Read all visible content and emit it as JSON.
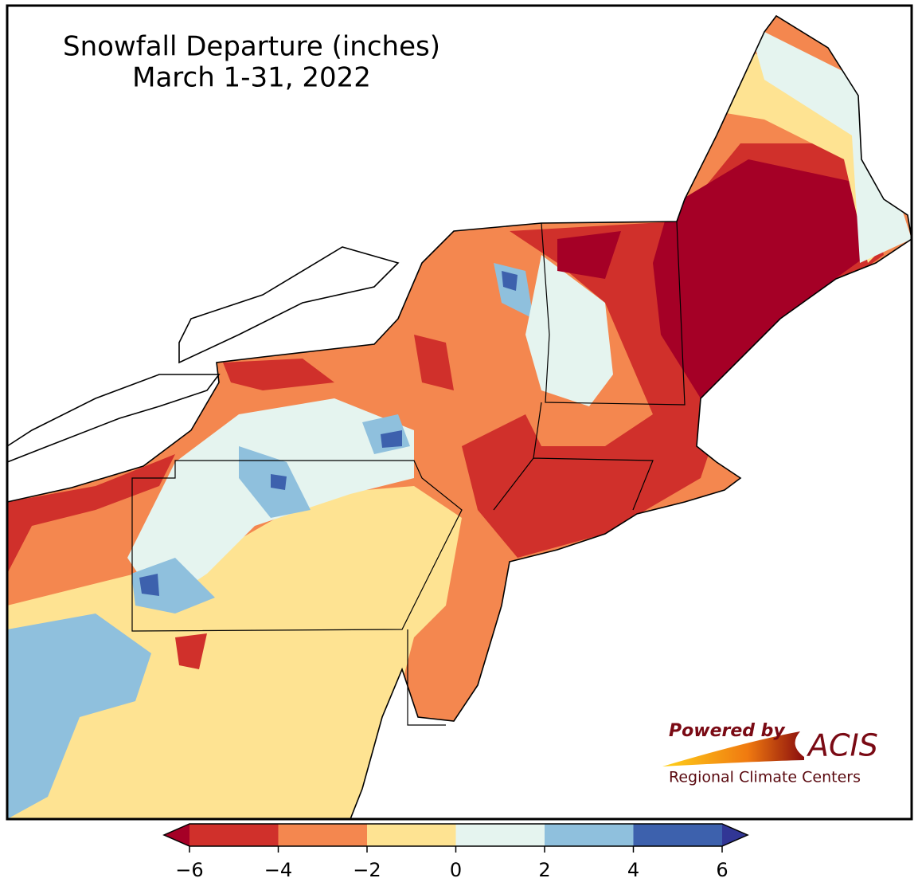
{
  "title": [
    "Snowfall Departure (inches)",
    "March 1-31, 2022"
  ],
  "colorbar": {
    "ticks": [
      {
        "value": -6,
        "label": "−6"
      },
      {
        "value": -4,
        "label": "−4"
      },
      {
        "value": -2,
        "label": "−2"
      },
      0,
      2,
      4,
      6
    ],
    "colors": [
      "#d0302b",
      "#f4874f",
      "#fee392",
      "#e5f4ef",
      "#8fc0dd",
      "#3d61ad"
    ],
    "under_color": "#a50026",
    "over_color": "#313695"
  },
  "logo": {
    "tagline": "Powered by",
    "brand": "ACIS",
    "subtitle": "Regional Climate Centers"
  }
}
